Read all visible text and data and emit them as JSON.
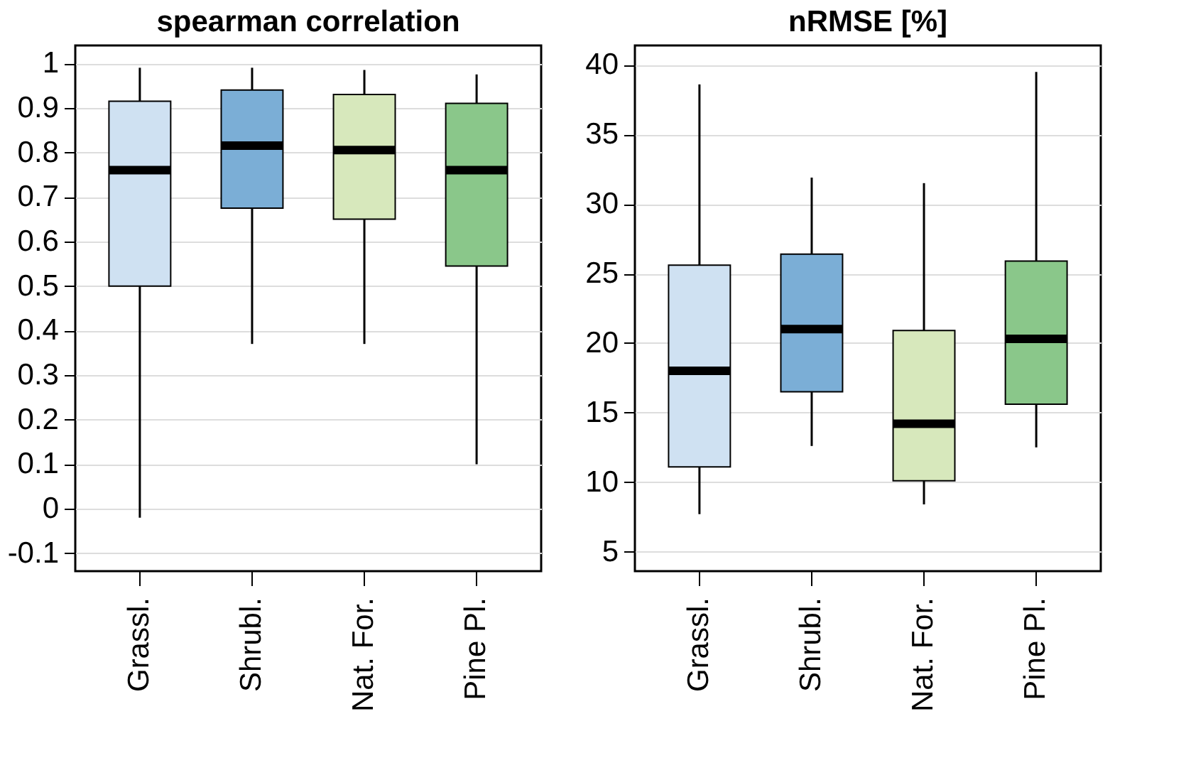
{
  "chart_data": [
    {
      "type": "box",
      "title": "spearman correlation",
      "categories": [
        "Grassl.",
        "Shrubl.",
        "Nat. For.",
        "Pine Pl."
      ],
      "colors": [
        "#cfe1f2",
        "#7baed6",
        "#d7e8bc",
        "#8ac78a"
      ],
      "boxes": [
        {
          "low": -0.02,
          "q1": 0.5,
          "median": 0.76,
          "q3": 0.915,
          "high": 0.99
        },
        {
          "low": 0.37,
          "q1": 0.675,
          "median": 0.815,
          "q3": 0.94,
          "high": 0.99
        },
        {
          "low": 0.37,
          "q1": 0.65,
          "median": 0.805,
          "q3": 0.93,
          "high": 0.985
        },
        {
          "low": 0.1,
          "q1": 0.545,
          "median": 0.76,
          "q3": 0.91,
          "high": 0.975
        }
      ],
      "ylim": [
        -0.14,
        1.04
      ],
      "yticks": [
        -0.1,
        0,
        0.1,
        0.2,
        0.3,
        0.4,
        0.5,
        0.6,
        0.7,
        0.8,
        0.9,
        1
      ],
      "grid": "y"
    },
    {
      "type": "box",
      "title": "nRMSE [%]",
      "categories": [
        "Grassl.",
        "Shrubl.",
        "Nat. For.",
        "Pine Pl."
      ],
      "colors": [
        "#cfe1f2",
        "#7baed6",
        "#d7e8bc",
        "#8ac78a"
      ],
      "boxes": [
        {
          "low": 7.7,
          "q1": 11.1,
          "median": 18,
          "q3": 25.6,
          "high": 38.6
        },
        {
          "low": 12.6,
          "q1": 16.5,
          "median": 21,
          "q3": 26.4,
          "high": 31.9
        },
        {
          "low": 8.4,
          "q1": 10.1,
          "median": 14.2,
          "q3": 20.9,
          "high": 31.5
        },
        {
          "low": 12.5,
          "q1": 15.6,
          "median": 20.3,
          "q3": 25.9,
          "high": 39.5
        }
      ],
      "ylim": [
        3.6,
        41.4
      ],
      "yticks": [
        5,
        10,
        15,
        20,
        25,
        30,
        35,
        40
      ],
      "grid": "y"
    }
  ]
}
